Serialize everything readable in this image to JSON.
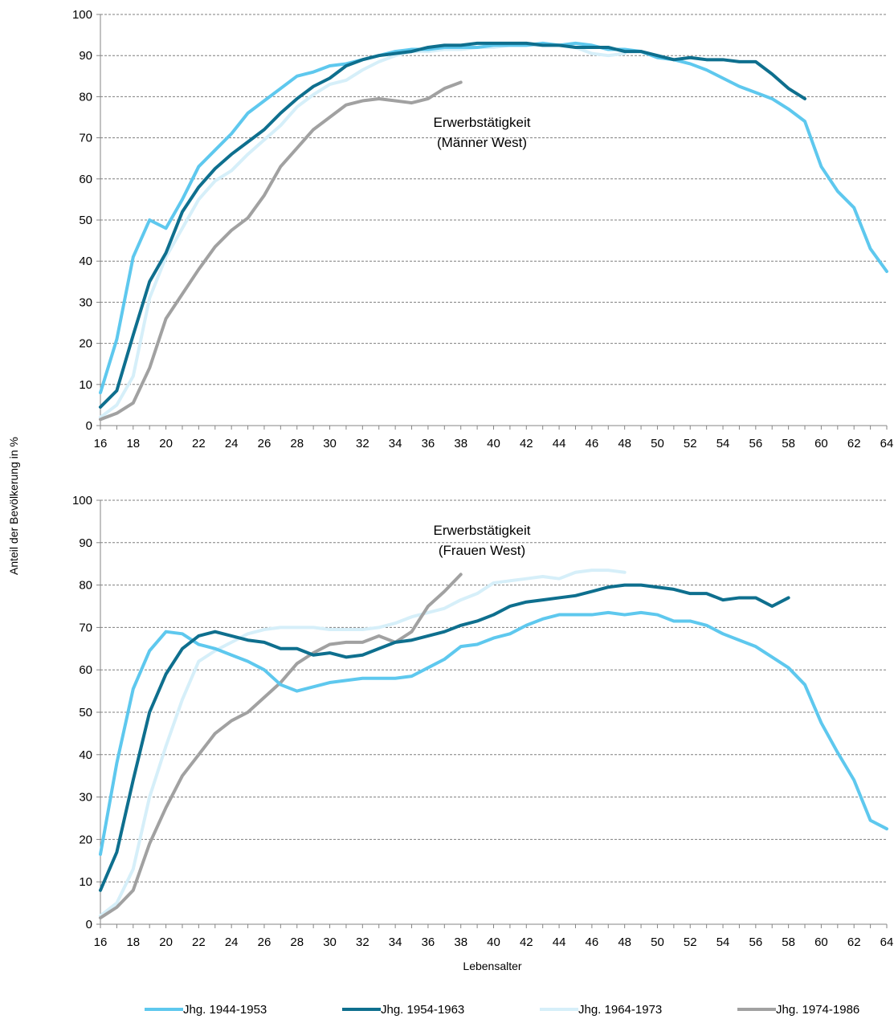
{
  "figure": {
    "ylabel": "Anteil der Bevölkerung in %",
    "xlabel": "Lebensalter"
  },
  "legend": [
    {
      "name": "Jhg. 1944-1953",
      "color": "#5ec8ee"
    },
    {
      "name": "Jhg. 1954-1963",
      "color": "#0e6f8e"
    },
    {
      "name": "Jhg. 1964-1973",
      "color": "#d6eff9"
    },
    {
      "name": "Jhg. 1974-1986",
      "color": "#a1a1a1"
    }
  ],
  "chart_data": [
    {
      "type": "line",
      "annotation": [
        "Erwerbstätigkeit",
        "(Männer West)"
      ],
      "xlim": [
        16,
        64
      ],
      "ylim": [
        0,
        100
      ],
      "xticks": [
        16,
        18,
        20,
        22,
        24,
        26,
        28,
        30,
        32,
        34,
        36,
        38,
        40,
        42,
        44,
        46,
        48,
        50,
        52,
        54,
        56,
        58,
        60,
        62,
        64
      ],
      "yticks": [
        0,
        10,
        20,
        30,
        40,
        50,
        60,
        70,
        80,
        90,
        100
      ],
      "grid": "horizontal dashed",
      "series": [
        {
          "name": "Jhg. 1944-1953",
          "x_start": 16,
          "values": [
            8,
            21,
            41,
            50,
            48,
            55,
            63,
            67,
            71,
            76,
            79,
            82,
            85,
            86,
            87.5,
            88,
            89,
            90,
            91,
            91.5,
            91.5,
            92,
            92,
            92,
            92.5,
            92.5,
            92.5,
            93,
            92.5,
            93,
            92.5,
            91.5,
            91.5,
            91,
            89.5,
            89,
            88,
            86.5,
            84.5,
            82.5,
            81,
            79.5,
            77,
            74,
            63,
            57,
            53,
            43,
            37.5
          ]
        },
        {
          "name": "Jhg. 1954-1963",
          "x_start": 16,
          "values": [
            4.5,
            8.5,
            22,
            35,
            42,
            52,
            58,
            62.5,
            66,
            69,
            72,
            76,
            79.5,
            82.5,
            84.5,
            87.5,
            89,
            90,
            90.5,
            91,
            92,
            92.5,
            92.5,
            93,
            93,
            93,
            93,
            92.5,
            92.5,
            92,
            92,
            92,
            91,
            91,
            90,
            89,
            89.5,
            89,
            89,
            88.5,
            88.5,
            85.5,
            82,
            79.5
          ]
        },
        {
          "name": "Jhg. 1964-1973",
          "x_start": 16,
          "values": [
            2,
            5,
            12,
            31,
            41,
            48,
            55,
            59.5,
            62,
            66,
            69.5,
            73,
            77.5,
            80.5,
            83,
            84,
            86.5,
            88.5,
            90,
            91,
            91,
            91.5,
            91.5,
            92,
            92,
            92.5,
            92.5,
            92.5,
            92.5,
            92,
            90.5,
            90,
            90.5
          ]
        },
        {
          "name": "Jhg. 1974-1986",
          "x_start": 16,
          "values": [
            1.5,
            3,
            5.5,
            14,
            26,
            32,
            38,
            43.5,
            47.5,
            50.5,
            56,
            63,
            67.5,
            72,
            75,
            78,
            79,
            79.5,
            79,
            78.5,
            79.5,
            82,
            83.5
          ]
        }
      ]
    },
    {
      "type": "line",
      "annotation": [
        "Erwerbstätigkeit",
        "(Frauen West)"
      ],
      "xlim": [
        16,
        64
      ],
      "ylim": [
        0,
        100
      ],
      "xticks": [
        16,
        18,
        20,
        22,
        24,
        26,
        28,
        30,
        32,
        34,
        36,
        38,
        40,
        42,
        44,
        46,
        48,
        50,
        52,
        54,
        56,
        58,
        60,
        62,
        64
      ],
      "yticks": [
        0,
        10,
        20,
        30,
        40,
        50,
        60,
        70,
        80,
        90,
        100
      ],
      "grid": "horizontal dashed",
      "series": [
        {
          "name": "Jhg. 1944-1953",
          "x_start": 16,
          "values": [
            16.5,
            38,
            55.5,
            64.5,
            69,
            68.5,
            66,
            65,
            63.5,
            62,
            60,
            56.5,
            55,
            56,
            57,
            57.5,
            58,
            58,
            58,
            58.5,
            60.5,
            62.5,
            65.5,
            66,
            67.5,
            68.5,
            70.5,
            72,
            73,
            73,
            73,
            73.5,
            73,
            73.5,
            73,
            71.5,
            71.5,
            70.5,
            68.5,
            67,
            65.5,
            63,
            60.5,
            56.5,
            47.5,
            40.5,
            34,
            24.5,
            22.5
          ]
        },
        {
          "name": "Jhg. 1954-1963",
          "x_start": 16,
          "values": [
            8,
            17,
            34,
            50,
            59,
            65,
            68,
            69,
            68,
            67,
            66.5,
            65,
            65,
            63.5,
            64,
            63,
            63.5,
            65,
            66.5,
            67,
            68,
            69,
            70.5,
            71.5,
            73,
            75,
            76,
            76.5,
            77,
            77.5,
            78.5,
            79.5,
            80,
            80,
            79.5,
            79,
            78,
            78,
            76.5,
            77,
            77,
            75,
            77
          ]
        },
        {
          "name": "Jhg. 1964-1973",
          "x_start": 16,
          "values": [
            2,
            5,
            13,
            30,
            42,
            53,
            62,
            64.5,
            66.5,
            68.5,
            69.5,
            70,
            70,
            70,
            69.5,
            69.5,
            69.5,
            70,
            71,
            72.5,
            73.5,
            74.5,
            76.5,
            78,
            80.5,
            81,
            81.5,
            82,
            81.5,
            83,
            83.5,
            83.5,
            83
          ]
        },
        {
          "name": "Jhg. 1974-1986",
          "x_start": 16,
          "values": [
            1.5,
            4,
            8,
            19,
            27.5,
            35,
            40,
            45,
            48,
            50,
            53.5,
            57,
            61.5,
            64,
            66,
            66.5,
            66.5,
            68,
            66.5,
            69,
            75,
            78.5,
            82.5
          ]
        }
      ]
    }
  ]
}
